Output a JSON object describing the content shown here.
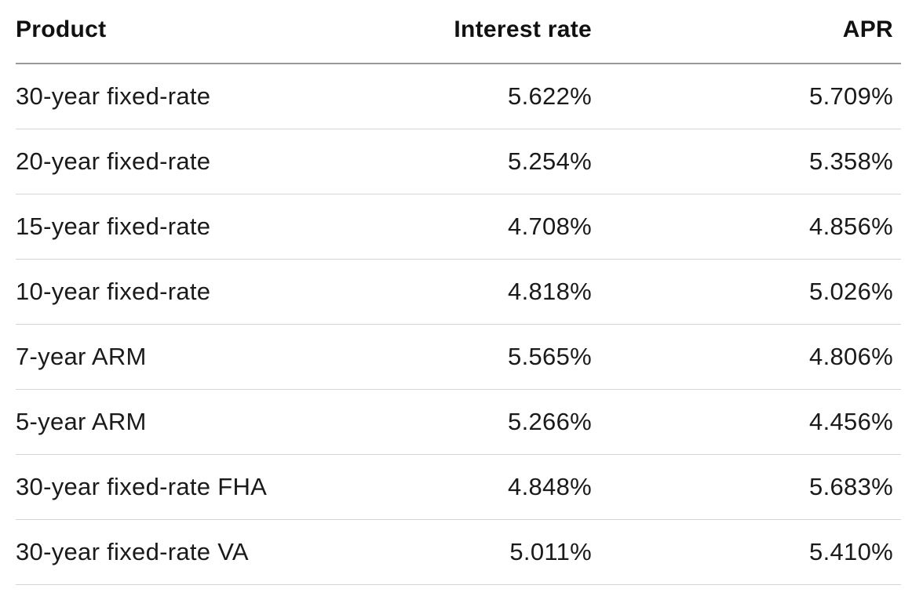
{
  "table": {
    "headers": {
      "product": "Product",
      "interest_rate": "Interest rate",
      "apr": "APR"
    },
    "rows": [
      {
        "product": "30-year fixed-rate",
        "interest_rate": "5.622%",
        "apr": "5.709%"
      },
      {
        "product": "20-year fixed-rate",
        "interest_rate": "5.254%",
        "apr": "5.358%"
      },
      {
        "product": "15-year fixed-rate",
        "interest_rate": "4.708%",
        "apr": "4.856%"
      },
      {
        "product": "10-year fixed-rate",
        "interest_rate": "4.818%",
        "apr": "5.026%"
      },
      {
        "product": "7-year ARM",
        "interest_rate": "5.565%",
        "apr": "4.806%"
      },
      {
        "product": "5-year ARM",
        "interest_rate": "5.266%",
        "apr": "4.456%"
      },
      {
        "product": "30-year fixed-rate FHA",
        "interest_rate": "4.848%",
        "apr": "5.683%"
      },
      {
        "product": "30-year fixed-rate VA",
        "interest_rate": "5.011%",
        "apr": "5.410%"
      }
    ]
  }
}
